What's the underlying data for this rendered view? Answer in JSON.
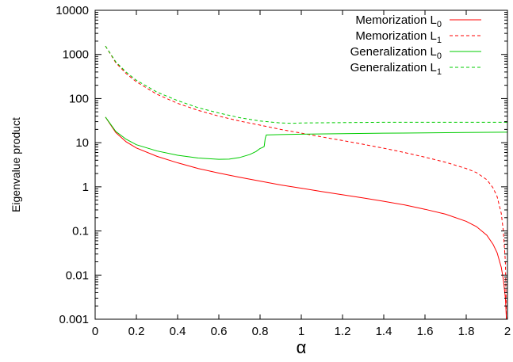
{
  "chart_data": {
    "type": "line",
    "title": "",
    "xlabel": "α",
    "ylabel": "Eigenvalue product",
    "xlim": [
      0,
      2
    ],
    "ylim": [
      0.001,
      10000
    ],
    "yscale": "log",
    "grid": false,
    "legend_position": "top-right",
    "x_ticks": [
      0,
      0.2,
      0.4,
      0.6,
      0.8,
      1,
      1.2,
      1.4,
      1.6,
      1.8,
      2
    ],
    "x_tick_labels": [
      "0",
      "0.2",
      "0.4",
      "0.6",
      "0.8",
      "1",
      "1.2",
      "1.4",
      "1.6",
      "1.8",
      "2"
    ],
    "y_ticks": [
      0.001,
      0.01,
      0.1,
      1,
      10,
      100,
      1000,
      10000
    ],
    "y_tick_labels": [
      "0.001",
      "0.01",
      "0.1",
      "1",
      "10",
      "100",
      "1000",
      "10000"
    ],
    "series": [
      {
        "name": "Memorization L0",
        "label_main": "Memorization L",
        "label_sub": "0",
        "color": "#ff0000",
        "dash": "solid",
        "x": [
          0.05,
          0.1,
          0.15,
          0.2,
          0.3,
          0.4,
          0.5,
          0.6,
          0.7,
          0.8,
          0.9,
          1.0,
          1.1,
          1.2,
          1.3,
          1.4,
          1.5,
          1.6,
          1.7,
          1.8,
          1.85,
          1.9,
          1.93,
          1.95,
          1.97,
          1.98,
          1.99,
          1.995
        ],
        "y": [
          38,
          17,
          10.5,
          7.6,
          4.9,
          3.5,
          2.6,
          2.05,
          1.65,
          1.35,
          1.1,
          0.93,
          0.78,
          0.66,
          0.56,
          0.47,
          0.39,
          0.31,
          0.24,
          0.165,
          0.125,
          0.08,
          0.05,
          0.032,
          0.015,
          0.008,
          0.003,
          0.001
        ]
      },
      {
        "name": "Memorization L1",
        "label_main": "Memorization L",
        "label_sub": "1",
        "color": "#ff0000",
        "dash": "dashed",
        "x": [
          0.05,
          0.1,
          0.15,
          0.2,
          0.3,
          0.4,
          0.5,
          0.6,
          0.7,
          0.8,
          0.9,
          1.0,
          1.1,
          1.2,
          1.3,
          1.4,
          1.5,
          1.6,
          1.7,
          1.8,
          1.85,
          1.9,
          1.93,
          1.95,
          1.97,
          1.98,
          1.99,
          1.995
        ],
        "y": [
          1550,
          650,
          370,
          240,
          125,
          78,
          54,
          40,
          31,
          25,
          20,
          16.5,
          13.5,
          11.2,
          9.2,
          7.5,
          6.0,
          4.7,
          3.6,
          2.6,
          2.1,
          1.45,
          0.95,
          0.6,
          0.25,
          0.1,
          0.02,
          0.001
        ]
      },
      {
        "name": "Generalization L0",
        "label_main": "Generalization L",
        "label_sub": "0",
        "color": "#00cc00",
        "dash": "solid",
        "x": [
          0.05,
          0.1,
          0.15,
          0.2,
          0.3,
          0.4,
          0.5,
          0.6,
          0.65,
          0.7,
          0.75,
          0.78,
          0.8,
          0.81,
          0.82,
          0.825,
          0.83,
          0.9,
          1.0,
          1.2,
          1.4,
          1.6,
          1.8,
          2.0
        ],
        "y": [
          38,
          18,
          12,
          9.0,
          6.5,
          5.2,
          4.5,
          4.2,
          4.25,
          4.6,
          5.4,
          6.3,
          7.4,
          7.7,
          8.2,
          12.5,
          15.0,
          15.3,
          15.6,
          16.0,
          16.4,
          16.7,
          17.0,
          17.3
        ]
      },
      {
        "name": "Generalization L1",
        "label_main": "Generalization L",
        "label_sub": "1",
        "color": "#00cc00",
        "dash": "dashed",
        "x": [
          0.05,
          0.1,
          0.15,
          0.2,
          0.3,
          0.4,
          0.5,
          0.6,
          0.7,
          0.8,
          0.9,
          0.95,
          1.0,
          1.2,
          1.4,
          1.6,
          1.8,
          2.0
        ],
        "y": [
          1550,
          680,
          400,
          260,
          140,
          90,
          62,
          47,
          37,
          31,
          28,
          27.5,
          28,
          28.5,
          29,
          29,
          29,
          29
        ]
      }
    ]
  }
}
